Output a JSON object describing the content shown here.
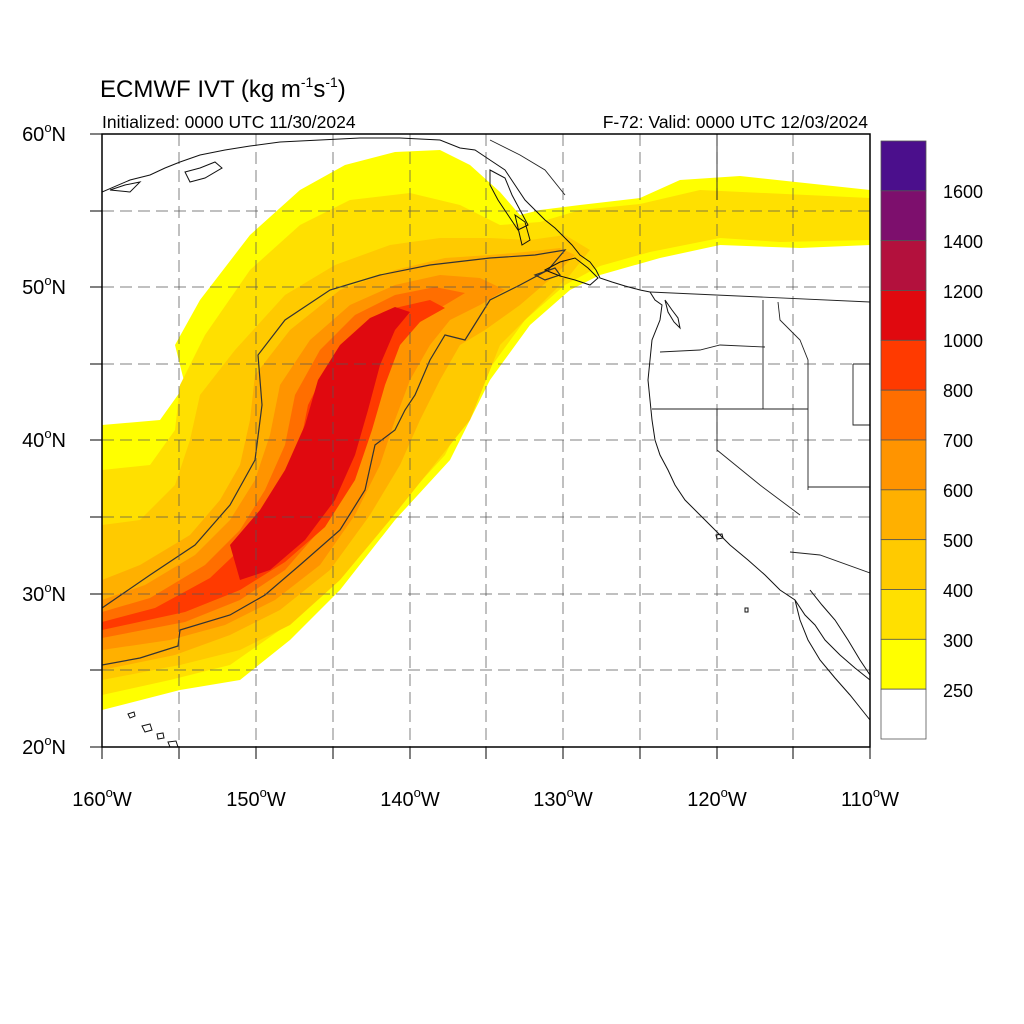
{
  "map": {
    "title_main": "ECMWF IVT (kg m",
    "title_exp1": "-1",
    "title_mid": "s",
    "title_exp2": "-1",
    "title_end": ")",
    "initialized": "Initialized: 0000 UTC 11/30/2024",
    "valid": "F-72: Valid: 0000 UTC 12/03/2024",
    "lon_ticks": [
      "160",
      "150",
      "140",
      "130",
      "120",
      "110"
    ],
    "lon_suffix": "W",
    "lat_ticks": [
      "60",
      "50",
      "40",
      "30",
      "20"
    ],
    "lat_suffix": "N",
    "deg": "o",
    "extent": {
      "lon_min": -160,
      "lon_max": -110,
      "lat_min": 20,
      "lat_max": 60
    }
  },
  "colorbar": {
    "labels": [
      "1600",
      "1400",
      "1200",
      "1000",
      "800",
      "700",
      "600",
      "500",
      "400",
      "300",
      "250"
    ],
    "colors": [
      "#4b0f8c",
      "#7d0f6d",
      "#b3113d",
      "#e0090f",
      "#ff3a00",
      "#ff6e00",
      "#ff9400",
      "#ffb000",
      "#ffca00",
      "#ffe000",
      "#ffff00",
      "#ffffff"
    ]
  },
  "ivt_shading": {
    "c250": "#ffff00",
    "c300": "#ffe000",
    "c400": "#ffca00",
    "c500": "#ffb000",
    "c600": "#ff9400",
    "c700": "#ff6e00",
    "c800": "#ff3a00",
    "c1000": "#e0090f"
  }
}
